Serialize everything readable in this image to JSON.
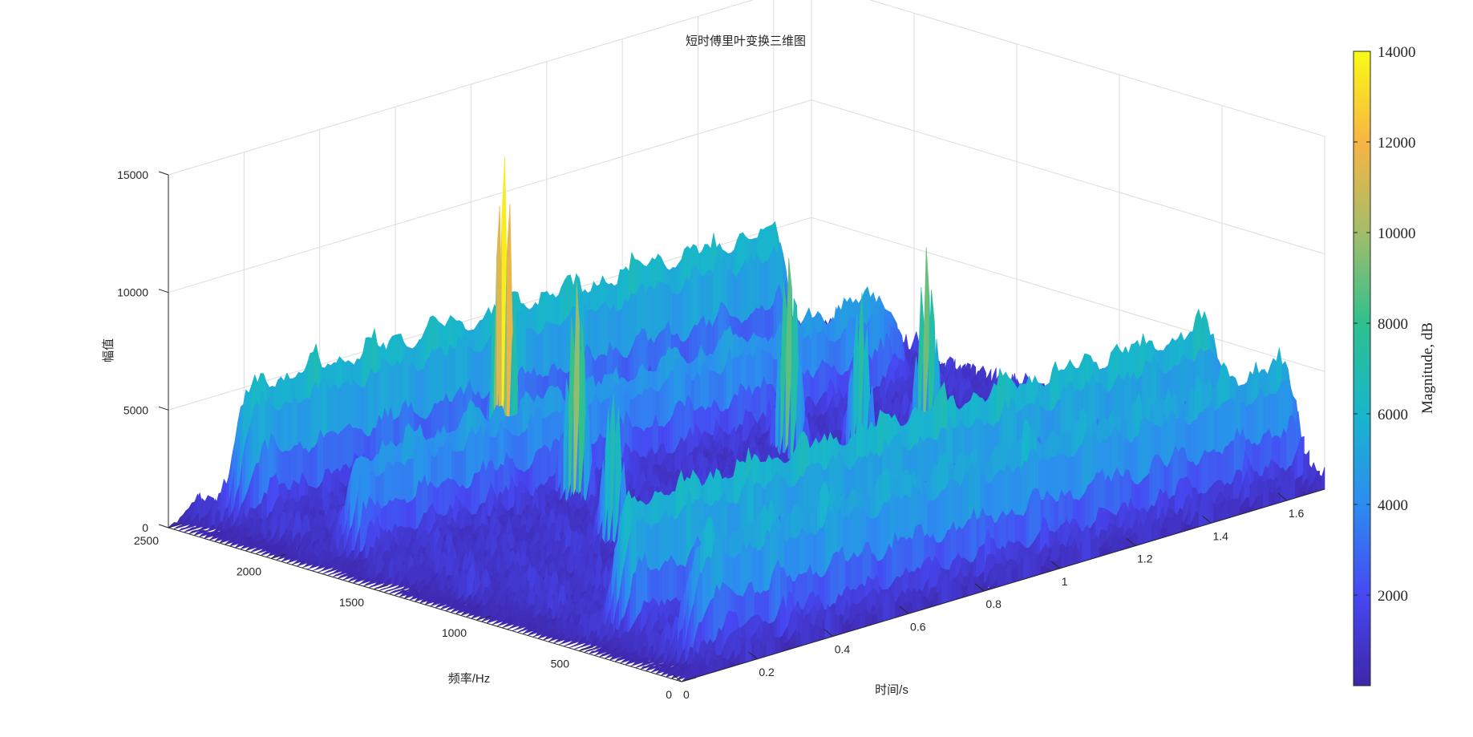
{
  "chart_data": {
    "type": "surface3d",
    "title": "短时傅里叶变换三维图",
    "xlabel": "时间/s",
    "ylabel": "频率/Hz",
    "zlabel": "幅值",
    "xlim": [
      0,
      1.7
    ],
    "ylim": [
      0,
      2500
    ],
    "zlim": [
      0,
      15000
    ],
    "xticks": [
      0,
      0.2,
      0.4,
      0.6,
      0.8,
      1,
      1.2,
      1.4,
      1.6
    ],
    "xtick_labels": [
      "0",
      "0.2",
      "0.4",
      "0.6",
      "0.8",
      "1",
      "1.2",
      "1.4",
      "1.6"
    ],
    "yticks": [
      0,
      500,
      1000,
      1500,
      2000,
      2500
    ],
    "ytick_labels": [
      "0",
      "500",
      "1000",
      "1500",
      "2000",
      "2500"
    ],
    "zticks": [
      0,
      5000,
      10000,
      15000
    ],
    "ztick_labels": [
      "0",
      "5000",
      "10000",
      "15000"
    ],
    "grid": true,
    "colormap": "parula",
    "colormap_stops": [
      "#3e26a8",
      "#4748f3",
      "#2d8cf0",
      "#18b6cc",
      "#2ec08f",
      "#a3bd6a",
      "#f8b444",
      "#f9fb15"
    ],
    "colorbar": {
      "label": "Magnitude, dB",
      "range": [
        0,
        14000
      ],
      "ticks": [
        2000,
        4000,
        6000,
        8000,
        10000,
        12000,
        14000
      ],
      "tick_labels": [
        "2000",
        "4000",
        "6000",
        "8000",
        "10000",
        "12000",
        "14000"
      ]
    },
    "ridges": [
      {
        "frequency": 2350,
        "level": 5200,
        "time_range": [
          0.1,
          1.55
        ]
      },
      {
        "frequency": 1800,
        "level": 3800,
        "time_range": [
          0.1,
          1.55
        ]
      },
      {
        "frequency": 500,
        "level": 5200,
        "time_range": [
          0.1,
          1.7
        ]
      },
      {
        "frequency": 150,
        "level": 4500,
        "time_range": [
          0.1,
          1.7
        ]
      }
    ],
    "peaks": [
      {
        "time": 0.67,
        "frequency": 2100,
        "magnitude": 14000
      },
      {
        "time": 0.62,
        "frequency": 1650,
        "magnitude": 9700
      },
      {
        "time": 0.47,
        "frequency": 1200,
        "magnitude": 6500
      },
      {
        "time": 1.1,
        "frequency": 1500,
        "magnitude": 8500
      },
      {
        "time": 1.18,
        "frequency": 1300,
        "magnitude": 7000
      },
      {
        "time": 1.3,
        "frequency": 1200,
        "magnitude": 8000
      }
    ]
  }
}
